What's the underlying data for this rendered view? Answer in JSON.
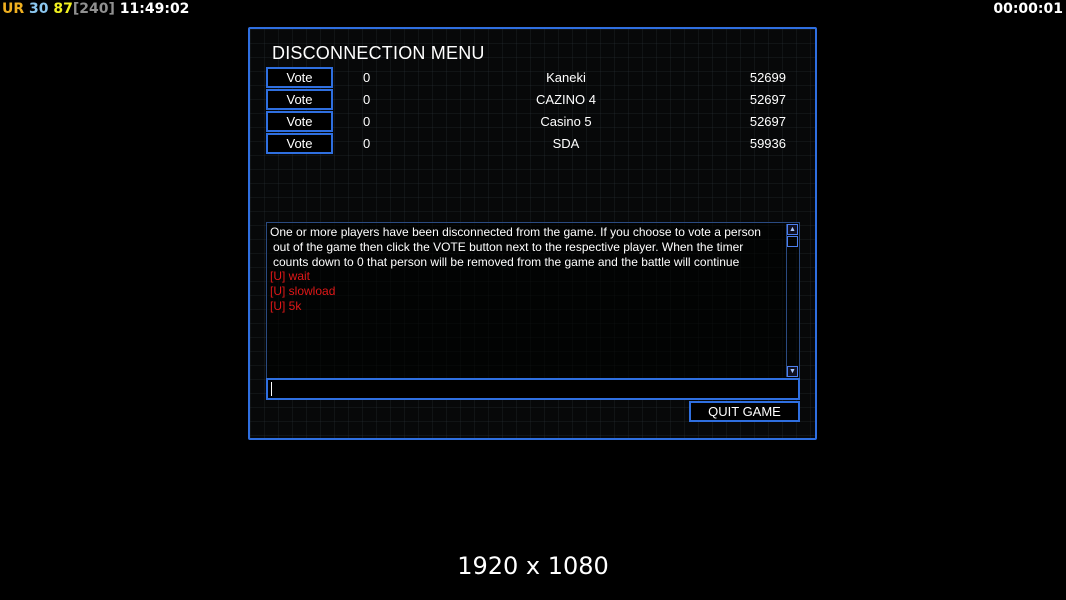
{
  "hud": {
    "ur_label": "UR",
    "ur_color": "#f0b020",
    "val1": "30",
    "val1_color": "#8cc8f0",
    "val2": "87",
    "val2_color": "#f0f020",
    "bracket": "[240]",
    "bracket_color": "#909090",
    "clock": "11:49:02",
    "timer": "00:00:01"
  },
  "menu": {
    "title": "DISCONNECTION MENU",
    "players": [
      {
        "vote_label": "Vote",
        "votes": "0",
        "name": "Kaneki",
        "id": "52699"
      },
      {
        "vote_label": "Vote",
        "votes": "0",
        "name": "CAZINO 4",
        "id": "52697"
      },
      {
        "vote_label": "Vote",
        "votes": "0",
        "name": "Casino 5",
        "id": "52697"
      },
      {
        "vote_label": "Vote",
        "votes": "0",
        "name": "SDA",
        "id": "59936"
      }
    ],
    "chat": {
      "system_lines": [
        "One or more players have been disconnected from the game. If you choose to vote a person",
        "out of the game then click the VOTE button next to the respective player. When the timer",
        "counts down to 0 that person will be removed from the game and the battle will continue"
      ],
      "messages": [
        "[U] wait",
        "[U] slowload",
        "[U] 5k"
      ]
    },
    "input_value": "",
    "quit_label": "QUIT GAME"
  },
  "resolution": "1920 x 1080",
  "accent_color": "#2f6fe0"
}
